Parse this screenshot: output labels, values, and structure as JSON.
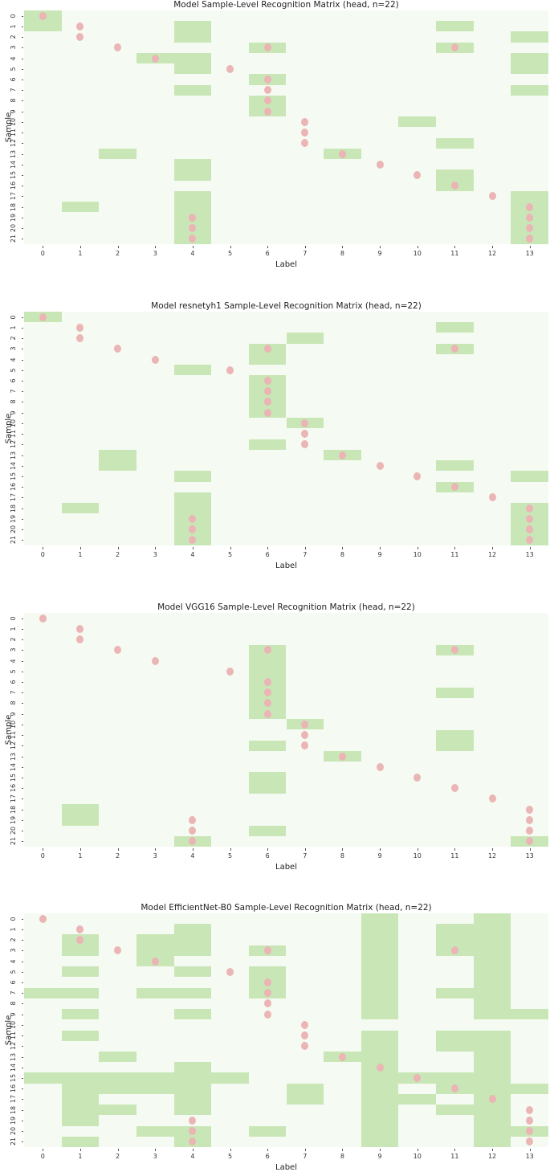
{
  "chart_data": [
    {
      "type": "heatmap",
      "title": "Model Sample-Level Recognition Matrix (head, n=22)",
      "xlabel": "Label",
      "ylabel": "Sample",
      "x_ticks": [
        0,
        1,
        2,
        3,
        4,
        5,
        6,
        7,
        8,
        9,
        10,
        11,
        12,
        13
      ],
      "y_ticks": [
        0,
        1,
        2,
        3,
        4,
        5,
        6,
        7,
        8,
        9,
        10,
        11,
        12,
        13,
        14,
        15,
        16,
        17,
        18,
        19,
        20,
        21
      ],
      "legend": "green cells = predicted/recognized labels; pink dots = true labels",
      "green_cells": [
        [
          0
        ],
        [
          0,
          4,
          11
        ],
        [
          4,
          13
        ],
        [
          6,
          11
        ],
        [
          3,
          4,
          13
        ],
        [
          4,
          13
        ],
        [
          6
        ],
        [
          4,
          13
        ],
        [
          6
        ],
        [
          6
        ],
        [
          10
        ],
        [],
        [
          11
        ],
        [
          2,
          8
        ],
        [
          4
        ],
        [
          4,
          11
        ],
        [
          11
        ],
        [
          4,
          13
        ],
        [
          1,
          4,
          13
        ],
        [
          4,
          13
        ],
        [
          4,
          13
        ],
        [
          4,
          13
        ]
      ],
      "true_labels": [
        [
          0
        ],
        [
          1
        ],
        [
          1
        ],
        [
          2,
          6,
          11
        ],
        [
          3
        ],
        [
          5
        ],
        [
          6
        ],
        [
          6
        ],
        [
          6
        ],
        [
          6
        ],
        [
          7
        ],
        [
          7
        ],
        [
          7
        ],
        [
          8
        ],
        [
          9
        ],
        [
          10
        ],
        [
          11
        ],
        [
          12
        ],
        [
          13
        ],
        [
          4,
          13
        ],
        [
          4,
          13
        ],
        [
          4,
          13
        ]
      ]
    },
    {
      "type": "heatmap",
      "title": "Model resnetyh1 Sample-Level Recognition Matrix (head, n=22)",
      "xlabel": "Label",
      "ylabel": "Sample",
      "x_ticks": [
        0,
        1,
        2,
        3,
        4,
        5,
        6,
        7,
        8,
        9,
        10,
        11,
        12,
        13
      ],
      "y_ticks": [
        0,
        1,
        2,
        3,
        4,
        5,
        6,
        7,
        8,
        9,
        10,
        11,
        12,
        13,
        14,
        15,
        16,
        17,
        18,
        19,
        20,
        21
      ],
      "legend": "green cells = predicted/recognized labels; pink dots = true labels",
      "green_cells": [
        [
          0
        ],
        [
          11
        ],
        [
          7
        ],
        [
          6,
          11
        ],
        [
          6
        ],
        [
          4
        ],
        [
          6
        ],
        [
          6
        ],
        [
          6
        ],
        [
          6
        ],
        [
          7
        ],
        [],
        [
          6
        ],
        [
          2,
          8
        ],
        [
          2,
          11
        ],
        [
          4,
          13
        ],
        [
          11
        ],
        [
          4
        ],
        [
          1,
          4,
          13
        ],
        [
          4,
          13
        ],
        [
          4,
          13
        ],
        [
          4,
          13
        ]
      ],
      "true_labels": [
        [
          0
        ],
        [
          1
        ],
        [
          1
        ],
        [
          2,
          6,
          11
        ],
        [
          3
        ],
        [
          5
        ],
        [
          6
        ],
        [
          6
        ],
        [
          6
        ],
        [
          6
        ],
        [
          7
        ],
        [
          7
        ],
        [
          7
        ],
        [
          8
        ],
        [
          9
        ],
        [
          10
        ],
        [
          11
        ],
        [
          12
        ],
        [
          13
        ],
        [
          4,
          13
        ],
        [
          4,
          13
        ],
        [
          4,
          13
        ]
      ]
    },
    {
      "type": "heatmap",
      "title": "Model VGG16 Sample-Level Recognition Matrix (head, n=22)",
      "xlabel": "Label",
      "ylabel": "Sample",
      "x_ticks": [
        0,
        1,
        2,
        3,
        4,
        5,
        6,
        7,
        8,
        9,
        10,
        11,
        12,
        13
      ],
      "y_ticks": [
        0,
        1,
        2,
        3,
        4,
        5,
        6,
        7,
        8,
        9,
        10,
        11,
        12,
        13,
        14,
        15,
        16,
        17,
        18,
        19,
        20,
        21
      ],
      "legend": "green cells = predicted/recognized labels; pink dots = true labels",
      "green_cells": [
        [],
        [],
        [],
        [
          6,
          11
        ],
        [
          6
        ],
        [
          6
        ],
        [
          6
        ],
        [
          6,
          11
        ],
        [
          6
        ],
        [
          6
        ],
        [
          7
        ],
        [
          11
        ],
        [
          6,
          11
        ],
        [
          8
        ],
        [],
        [
          6
        ],
        [
          6
        ],
        [],
        [
          1
        ],
        [
          1
        ],
        [
          6
        ],
        [
          4,
          13
        ]
      ],
      "true_labels": [
        [
          0
        ],
        [
          1
        ],
        [
          1
        ],
        [
          2,
          6,
          11
        ],
        [
          3
        ],
        [
          5
        ],
        [
          6
        ],
        [
          6
        ],
        [
          6
        ],
        [
          6
        ],
        [
          7
        ],
        [
          7
        ],
        [
          7
        ],
        [
          8
        ],
        [
          9
        ],
        [
          10
        ],
        [
          11
        ],
        [
          12
        ],
        [
          13
        ],
        [
          4,
          13
        ],
        [
          4,
          13
        ],
        [
          4,
          13
        ]
      ]
    },
    {
      "type": "heatmap",
      "title": "Model EfficientNet-B0 Sample-Level Recognition Matrix (head, n=22)",
      "xlabel": "Label",
      "ylabel": "Sample",
      "x_ticks": [
        0,
        1,
        2,
        3,
        4,
        5,
        6,
        7,
        8,
        9,
        10,
        11,
        12,
        13
      ],
      "y_ticks": [
        0,
        1,
        2,
        3,
        4,
        5,
        6,
        7,
        8,
        9,
        10,
        11,
        12,
        13,
        14,
        15,
        16,
        17,
        18,
        19,
        20,
        21
      ],
      "legend": "green cells = predicted/recognized labels; pink dots = true labels",
      "green_cells": [
        [
          9,
          12
        ],
        [
          4,
          9,
          11,
          12
        ],
        [
          1,
          3,
          4,
          9,
          11,
          12
        ],
        [
          1,
          3,
          4,
          6,
          9,
          11,
          12
        ],
        [
          3,
          9,
          12
        ],
        [
          1,
          4,
          6,
          9,
          12
        ],
        [
          6,
          9,
          12
        ],
        [
          0,
          1,
          3,
          4,
          6,
          9,
          11,
          12
        ],
        [
          9,
          12
        ],
        [
          1,
          4,
          9,
          12,
          13
        ],
        [],
        [
          1,
          9,
          11,
          12
        ],
        [
          9,
          11,
          12
        ],
        [
          2,
          8,
          9,
          12
        ],
        [
          4,
          9,
          12
        ],
        [
          0,
          1,
          2,
          3,
          4,
          5,
          9,
          10,
          11,
          12
        ],
        [
          1,
          2,
          3,
          4,
          7,
          9,
          11,
          12,
          13
        ],
        [
          1,
          4,
          7,
          9,
          10,
          12
        ],
        [
          1,
          2,
          4,
          9,
          11,
          12
        ],
        [
          1,
          9,
          12
        ],
        [
          3,
          4,
          6,
          9,
          12,
          13
        ],
        [
          1,
          4,
          9,
          12
        ]
      ],
      "true_labels": [
        [
          0
        ],
        [
          1
        ],
        [
          1
        ],
        [
          2,
          6,
          11
        ],
        [
          3
        ],
        [
          5
        ],
        [
          6
        ],
        [
          6
        ],
        [
          6
        ],
        [
          6
        ],
        [
          7
        ],
        [
          7
        ],
        [
          7
        ],
        [
          8
        ],
        [
          9
        ],
        [
          10
        ],
        [
          11
        ],
        [
          12
        ],
        [
          13
        ],
        [
          4,
          13
        ],
        [
          4,
          13
        ],
        [
          4,
          13
        ]
      ]
    }
  ],
  "colors": {
    "background": "#f5fbf2",
    "predicted": "#c9e6b7",
    "true_dot": "#ebb5b5"
  },
  "layout": {
    "chart_tops": [
      13,
      388,
      763,
      1137
    ]
  }
}
